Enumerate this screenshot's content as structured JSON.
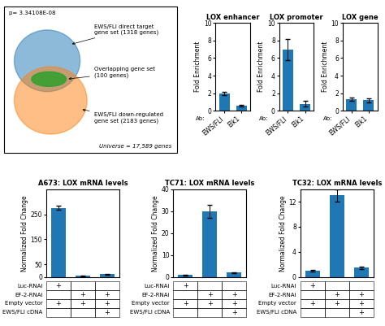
{
  "chart_data": [
    {
      "type": "venn",
      "sets": [
        {
          "name": "EWS/FLI direct target\ngene set (1318 genes)"
        },
        {
          "name": "EWS/FLI down-regulated\ngene set (2183 genes)"
        }
      ],
      "overlap": "Overlapping gene set\n(100 genes)",
      "annotations": [
        "p= 3.34108E-08",
        "Universe = 17,589 genes"
      ]
    },
    {
      "type": "bar",
      "title": "A673: LOX mRNA levels",
      "y_label": "Normalized Fold Change",
      "categories": [
        null,
        null,
        null
      ],
      "values": [
        275,
        5,
        12
      ],
      "errors": [
        8,
        1,
        2
      ],
      "ylim": [
        0,
        350
      ],
      "yticks": [
        0,
        50,
        150,
        250
      ],
      "tick_labels": "y",
      "table": {
        "rows": [
          "Luc-RNAi",
          "EF-2-RNAi",
          "Empty vector",
          "EWS/FLI cDNA"
        ],
        "marks": [
          [
            "+",
            null,
            null
          ],
          [
            null,
            "+",
            "+"
          ],
          [
            "+",
            "+",
            "+"
          ],
          [
            null,
            null,
            "+"
          ]
        ]
      }
    },
    {
      "type": "bar",
      "title": "TC71: LOX mRNA levels",
      "y_label": "Normalized Fold Change",
      "categories": [
        null,
        null,
        null
      ],
      "values": [
        1,
        30,
        2
      ],
      "errors": [
        0.2,
        3,
        0.3
      ],
      "ylim": [
        0,
        40
      ],
      "yticks": [
        0,
        10,
        20,
        30,
        40
      ],
      "tick_labels": "y",
      "table": {
        "rows": [
          "Luc-RNAi",
          "EF-2-RNAi",
          "Empty vector",
          "EWS/FLI cDNA"
        ],
        "marks": [
          [
            "+",
            null,
            null
          ],
          [
            null,
            "+",
            "+"
          ],
          [
            "+",
            "+",
            "+"
          ],
          [
            null,
            null,
            "+"
          ]
        ]
      }
    },
    {
      "type": "bar",
      "title": "TC32: LOX mRNA levels",
      "y_label": "Normalized Fold Change",
      "categories": [
        null,
        null,
        null
      ],
      "values": [
        1,
        13,
        1.5
      ],
      "errors": [
        0.1,
        1,
        0.2
      ],
      "ylim": [
        0,
        14
      ],
      "yticks": [
        0,
        4,
        8,
        12
      ],
      "tick_labels": "y",
      "table": {
        "rows": [
          "Luc-RNAi",
          "EF-2-RNAi",
          "Empty vector",
          "EWS/FLI cDNA"
        ],
        "marks": [
          [
            "+",
            null,
            null
          ],
          [
            null,
            "+",
            "+"
          ],
          [
            "+",
            "+",
            "+"
          ],
          [
            null,
            null,
            "+"
          ]
        ]
      }
    },
    {
      "type": "bar",
      "title": "LOX enhancer",
      "y_label": "Fold Enrichment",
      "categories": [
        "EWS/FLI",
        "Elk1"
      ],
      "values": [
        2.0,
        0.6
      ],
      "errors": [
        0.2,
        0.1
      ],
      "ylim": [
        0,
        10
      ],
      "yticks": [
        0,
        2,
        4,
        6,
        8,
        10
      ],
      "annotations": [
        "Ab:"
      ]
    },
    {
      "type": "bar",
      "title": "LOX promoter",
      "y_label": "Fold Enrichment",
      "categories": [
        "EWS/FLI",
        "Elk1"
      ],
      "values": [
        7.0,
        0.8
      ],
      "errors": [
        1.2,
        0.3
      ],
      "ylim": [
        0,
        10
      ],
      "yticks": [
        0,
        2,
        4,
        6,
        8,
        10
      ],
      "annotations": [
        "Ab:"
      ]
    },
    {
      "type": "bar",
      "title": "LOX gene",
      "y_label": "Fold Enrichment",
      "categories": [
        "EWS/FLI",
        "Elk1"
      ],
      "values": [
        1.3,
        1.2
      ],
      "errors": [
        0.2,
        0.2
      ],
      "ylim": [
        0,
        10
      ],
      "yticks": [
        0,
        2,
        4,
        6,
        8,
        10
      ],
      "annotations": [
        "Ab:"
      ]
    }
  ]
}
